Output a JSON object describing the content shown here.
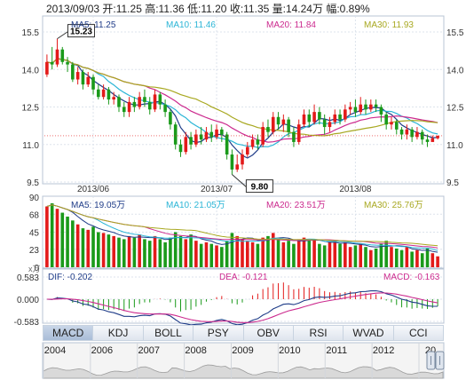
{
  "header": {
    "text": "2013/09/03 开:11.25  高:11.36  低:11.20  收:11.35  量:14.24万  幅:0.89%"
  },
  "colors": {
    "up": "#e31a1a",
    "down": "#1a9a1a",
    "ma5": "#1f3c88",
    "ma10": "#2bb5d6",
    "ma20": "#cc2a8e",
    "ma30": "#a8a820"
  },
  "chart_data": [
    {
      "type": "candlestick",
      "legend": {
        "ma5": "MA5: 11.25",
        "ma10": "MA10: 11.46",
        "ma20": "MA20: 11.84",
        "ma30": "MA30: 11.93"
      },
      "y_ticks": [
        "15.5",
        "14.0",
        "12.5",
        "11.0",
        "9.5"
      ],
      "y_range": [
        9.5,
        15.5
      ],
      "x_labels": [
        "2013/06",
        "2013/07",
        "2013/08"
      ],
      "annotations": [
        {
          "label": "15.23",
          "value": 15.23
        },
        {
          "label": "9.80",
          "value": 9.8
        }
      ],
      "last_close": "11.35",
      "candles": [
        [
          13.8,
          14.3,
          14.6,
          13.7
        ],
        [
          14.3,
          14.2,
          14.9,
          14.0
        ],
        [
          14.2,
          14.8,
          15.23,
          14.1
        ],
        [
          14.8,
          14.3,
          14.9,
          14.2
        ],
        [
          14.3,
          14.2,
          14.5,
          13.9
        ],
        [
          14.2,
          13.6,
          14.3,
          13.5
        ],
        [
          13.6,
          13.9,
          14.1,
          13.4
        ],
        [
          13.9,
          13.4,
          14.0,
          13.2
        ],
        [
          13.4,
          13.7,
          13.9,
          13.3
        ],
        [
          13.7,
          13.2,
          13.8,
          13.0
        ],
        [
          13.2,
          12.9,
          13.4,
          12.8
        ],
        [
          12.9,
          13.2,
          13.4,
          12.8
        ],
        [
          13.2,
          12.8,
          13.3,
          12.6
        ],
        [
          12.8,
          12.9,
          13.1,
          12.6
        ],
        [
          12.9,
          12.5,
          13.0,
          12.3
        ],
        [
          12.5,
          12.3,
          12.7,
          12.1
        ],
        [
          12.3,
          12.7,
          12.9,
          12.1
        ],
        [
          12.7,
          12.5,
          12.9,
          12.3
        ],
        [
          12.5,
          12.9,
          13.1,
          12.4
        ],
        [
          12.9,
          12.7,
          13.2,
          12.5
        ],
        [
          12.7,
          12.4,
          12.9,
          12.2
        ],
        [
          12.4,
          13.0,
          13.2,
          12.3
        ],
        [
          13.0,
          12.6,
          13.1,
          12.4
        ],
        [
          12.6,
          12.3,
          12.8,
          12.1
        ],
        [
          12.3,
          11.8,
          12.4,
          11.6
        ],
        [
          11.8,
          11.0,
          11.9,
          10.8
        ],
        [
          11.0,
          10.7,
          11.2,
          10.5
        ],
        [
          10.7,
          11.3,
          11.5,
          10.6
        ],
        [
          11.3,
          11.0,
          11.5,
          10.8
        ],
        [
          11.0,
          11.4,
          11.6,
          10.9
        ],
        [
          11.4,
          11.2,
          11.7,
          11.0
        ],
        [
          11.2,
          11.5,
          11.7,
          11.1
        ],
        [
          11.5,
          11.3,
          11.8,
          11.1
        ],
        [
          11.3,
          11.6,
          11.8,
          11.2
        ],
        [
          11.6,
          11.4,
          11.7,
          11.1
        ],
        [
          11.4,
          10.6,
          11.5,
          10.4
        ],
        [
          10.6,
          10.0,
          10.8,
          9.8
        ],
        [
          10.0,
          10.2,
          10.6,
          9.9
        ],
        [
          10.2,
          10.6,
          10.8,
          10.0
        ],
        [
          10.6,
          10.9,
          11.1,
          10.5
        ],
        [
          10.9,
          11.2,
          11.4,
          10.8
        ],
        [
          11.2,
          11.0,
          11.4,
          10.8
        ],
        [
          11.0,
          11.7,
          11.9,
          10.9
        ],
        [
          11.7,
          11.5,
          12.0,
          11.3
        ],
        [
          11.5,
          12.1,
          12.3,
          11.4
        ],
        [
          12.1,
          11.8,
          12.3,
          11.6
        ],
        [
          11.8,
          12.0,
          12.2,
          11.5
        ],
        [
          12.0,
          11.5,
          12.1,
          11.3
        ],
        [
          11.5,
          11.1,
          11.7,
          10.9
        ],
        [
          11.1,
          11.8,
          12.0,
          11.0
        ],
        [
          11.8,
          12.2,
          12.4,
          11.7
        ],
        [
          12.2,
          11.9,
          12.4,
          11.7
        ],
        [
          11.9,
          12.3,
          12.6,
          11.8
        ],
        [
          12.3,
          12.0,
          12.5,
          11.8
        ],
        [
          12.0,
          11.7,
          12.2,
          11.4
        ],
        [
          11.7,
          11.9,
          12.1,
          11.5
        ],
        [
          11.9,
          12.2,
          12.4,
          11.8
        ],
        [
          12.2,
          12.0,
          12.4,
          11.8
        ],
        [
          12.0,
          12.4,
          12.6,
          11.9
        ],
        [
          12.4,
          12.5,
          12.7,
          12.2
        ],
        [
          12.5,
          12.3,
          12.8,
          12.1
        ],
        [
          12.3,
          12.6,
          12.9,
          12.2
        ],
        [
          12.6,
          12.4,
          12.8,
          12.2
        ],
        [
          12.4,
          12.6,
          12.8,
          12.3
        ],
        [
          12.6,
          12.5,
          12.8,
          12.3
        ],
        [
          12.5,
          12.2,
          12.6,
          11.9
        ],
        [
          12.2,
          11.8,
          12.3,
          11.6
        ],
        [
          11.8,
          11.9,
          12.1,
          11.6
        ],
        [
          11.9,
          11.6,
          12.0,
          11.4
        ],
        [
          11.6,
          11.4,
          11.7,
          11.2
        ],
        [
          11.4,
          11.6,
          11.8,
          11.2
        ],
        [
          11.6,
          11.3,
          11.7,
          11.1
        ],
        [
          11.3,
          11.5,
          11.7,
          11.2
        ],
        [
          11.5,
          11.2,
          11.6,
          11.0
        ],
        [
          11.2,
          11.1,
          11.4,
          10.9
        ],
        [
          11.1,
          11.25,
          11.36,
          11.2
        ],
        [
          11.25,
          11.35,
          11.36,
          11.2
        ]
      ]
    },
    {
      "type": "bar",
      "legend": {
        "ma5": "MA5: 19.05万",
        "ma10": "MA10: 21.05万",
        "ma20": "MA20: 23.51万",
        "ma30": "MA30: 25.76万"
      },
      "y_ticks": [
        "90",
        "68",
        "45",
        "23",
        "0"
      ],
      "unit_label": "x万",
      "y_range": [
        0,
        90
      ],
      "values": [
        78,
        82,
        75,
        70,
        65,
        60,
        55,
        50,
        48,
        52,
        45,
        44,
        42,
        40,
        38,
        36,
        40,
        38,
        42,
        36,
        34,
        40,
        36,
        32,
        38,
        45,
        40,
        36,
        42,
        34,
        30,
        32,
        30,
        28,
        26,
        34,
        44,
        40,
        36,
        34,
        32,
        30,
        38,
        40,
        44,
        36,
        32,
        34,
        30,
        36,
        38,
        34,
        36,
        30,
        28,
        32,
        34,
        30,
        32,
        26,
        28,
        30,
        26,
        22,
        24,
        30,
        34,
        26,
        24,
        22,
        26,
        20,
        22,
        18,
        24,
        18,
        14
      ]
    },
    {
      "type": "macd",
      "legend": {
        "dif": "DIF: -0.202",
        "dea": "DEA: -0.121",
        "macd": "MACD: -0.163"
      },
      "y_ticks": [
        "0.583",
        "0.000",
        "-0.583"
      ],
      "y_range": [
        -0.583,
        0.583
      ]
    },
    {
      "type": "overview",
      "years": [
        "2004",
        "2006",
        "2007",
        "2008",
        "2009",
        "2010",
        "2011",
        "2012",
        "20"
      ]
    }
  ],
  "indicator_tabs": [
    "MACD",
    "KDJ",
    "BOLL",
    "PSY",
    "OBV",
    "RSI",
    "WVAD",
    "CCI"
  ],
  "active_tab": "MACD"
}
